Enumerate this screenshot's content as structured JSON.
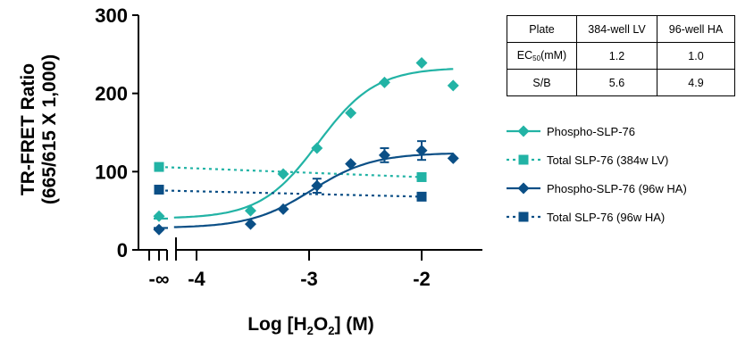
{
  "chart_data": {
    "type": "line",
    "xlabel": {
      "prefix": "Log [H",
      "sub1": "2",
      "mid": "O",
      "sub2": "2",
      "suffix": "] (M)"
    },
    "ylabel": [
      "TR-FRET Ratio",
      "(665/615 X 1,000)"
    ],
    "xlim": [
      -4.35,
      -1.62
    ],
    "ylim": [
      0,
      300
    ],
    "y_ticks": [
      0,
      100,
      200,
      300
    ],
    "y_tick_labels": [
      "0",
      "100",
      "200",
      "300"
    ],
    "x_ticks": [
      -4,
      -3,
      -2
    ],
    "x_tick_labels": [
      "-4",
      "-3",
      "-2"
    ],
    "x_break_label": "-∞",
    "grid": false,
    "series": [
      {
        "name": "Phospho-SLP-76",
        "color": "#22b3a5",
        "marker": "diamond",
        "line": "solid",
        "baseline_point": 43,
        "x": [
          -3.52,
          -3.23,
          -2.93,
          -2.63,
          -2.33,
          -2.0,
          -1.72
        ],
        "values": [
          50,
          97,
          130,
          175,
          214,
          239,
          210
        ],
        "fit": {
          "bottom": 40,
          "top": 233,
          "ec50_log": -2.92,
          "hill": 1.7
        }
      },
      {
        "name": "Total SLP-76 (384w LV)",
        "color": "#22b3a5",
        "marker": "square",
        "line": "dotted",
        "baseline_point": 106,
        "x": [
          -2.0
        ],
        "values": [
          93
        ],
        "line_y_start": 106,
        "line_y_end": 93
      },
      {
        "name": "Phospho-SLP-76 (96w HA)",
        "color": "#0b4f86",
        "marker": "diamond",
        "line": "solid",
        "baseline_point": 26,
        "x": [
          -3.52,
          -3.23,
          -2.93,
          -2.63,
          -2.33,
          -2.0,
          -1.72
        ],
        "values": [
          33,
          52,
          82,
          110,
          121,
          127,
          117
        ],
        "errors": [
          0,
          0,
          9,
          0,
          9,
          12,
          0
        ],
        "fit": {
          "bottom": 28,
          "top": 124,
          "ec50_log": -2.98,
          "hill": 1.6
        }
      },
      {
        "name": "Total SLP-76 (96w HA)",
        "color": "#0b4f86",
        "marker": "square",
        "line": "dotted",
        "baseline_point": 77,
        "x": [
          -2.0
        ],
        "values": [
          68
        ],
        "line_y_start": 76,
        "line_y_end": 68
      }
    ]
  },
  "table": {
    "header": [
      "Plate",
      "384-well LV",
      "96-well HA"
    ],
    "ec50_label": {
      "prefix": "EC",
      "sub": "50",
      "suffix": "(mM)"
    },
    "ec50_values": [
      "1.2",
      "1.0"
    ],
    "sb_label": "S/B",
    "sb_values": [
      "5.6",
      "4.9"
    ]
  }
}
